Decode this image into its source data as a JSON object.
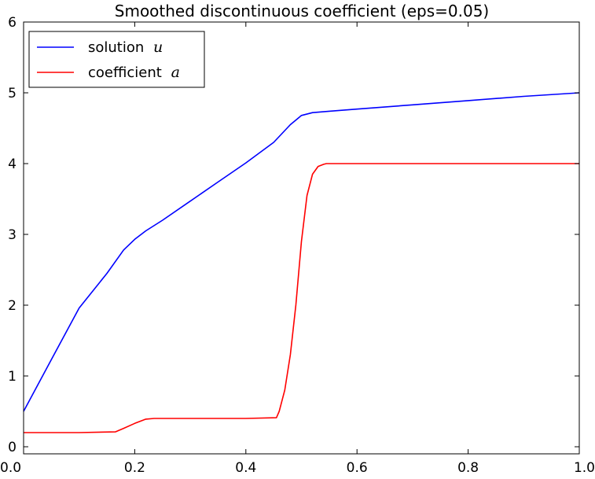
{
  "chart_data": {
    "type": "line",
    "title": "Smoothed discontinuous coefficient (eps=0.05)",
    "xlabel": "",
    "ylabel": "",
    "xlim": [
      0.0,
      1.0
    ],
    "ylim": [
      -0.1,
      6.0
    ],
    "xticks": [
      "0.0",
      "0.2",
      "0.4",
      "0.6",
      "0.8",
      "1.0"
    ],
    "yticks": [
      "0",
      "1",
      "2",
      "3",
      "4",
      "5",
      "6"
    ],
    "grid": false,
    "legend_position": "top-left",
    "series": [
      {
        "name": "solution",
        "name_var": "u",
        "color": "#0000ff",
        "x": [
          0.0,
          0.05,
          0.1,
          0.15,
          0.18,
          0.2,
          0.22,
          0.25,
          0.3,
          0.35,
          0.4,
          0.45,
          0.48,
          0.5,
          0.52,
          0.55,
          0.6,
          0.7,
          0.8,
          0.9,
          1.0
        ],
        "y": [
          0.5,
          1.23,
          1.96,
          2.45,
          2.78,
          2.93,
          3.05,
          3.2,
          3.47,
          3.74,
          4.01,
          4.3,
          4.55,
          4.68,
          4.72,
          4.74,
          4.77,
          4.83,
          4.89,
          4.95,
          5.0
        ]
      },
      {
        "name": "coefficient",
        "name_var": "a",
        "color": "#ff0000",
        "x": [
          0.0,
          0.1,
          0.165,
          0.18,
          0.2,
          0.22,
          0.235,
          0.3,
          0.4,
          0.455,
          0.46,
          0.47,
          0.48,
          0.49,
          0.5,
          0.51,
          0.52,
          0.53,
          0.54,
          0.545,
          0.6,
          0.8,
          1.0
        ],
        "y": [
          0.2,
          0.2,
          0.21,
          0.26,
          0.33,
          0.39,
          0.4,
          0.4,
          0.4,
          0.41,
          0.5,
          0.8,
          1.3,
          2.0,
          2.9,
          3.55,
          3.85,
          3.96,
          3.99,
          4.0,
          4.0,
          4.0,
          4.0
        ]
      }
    ]
  }
}
